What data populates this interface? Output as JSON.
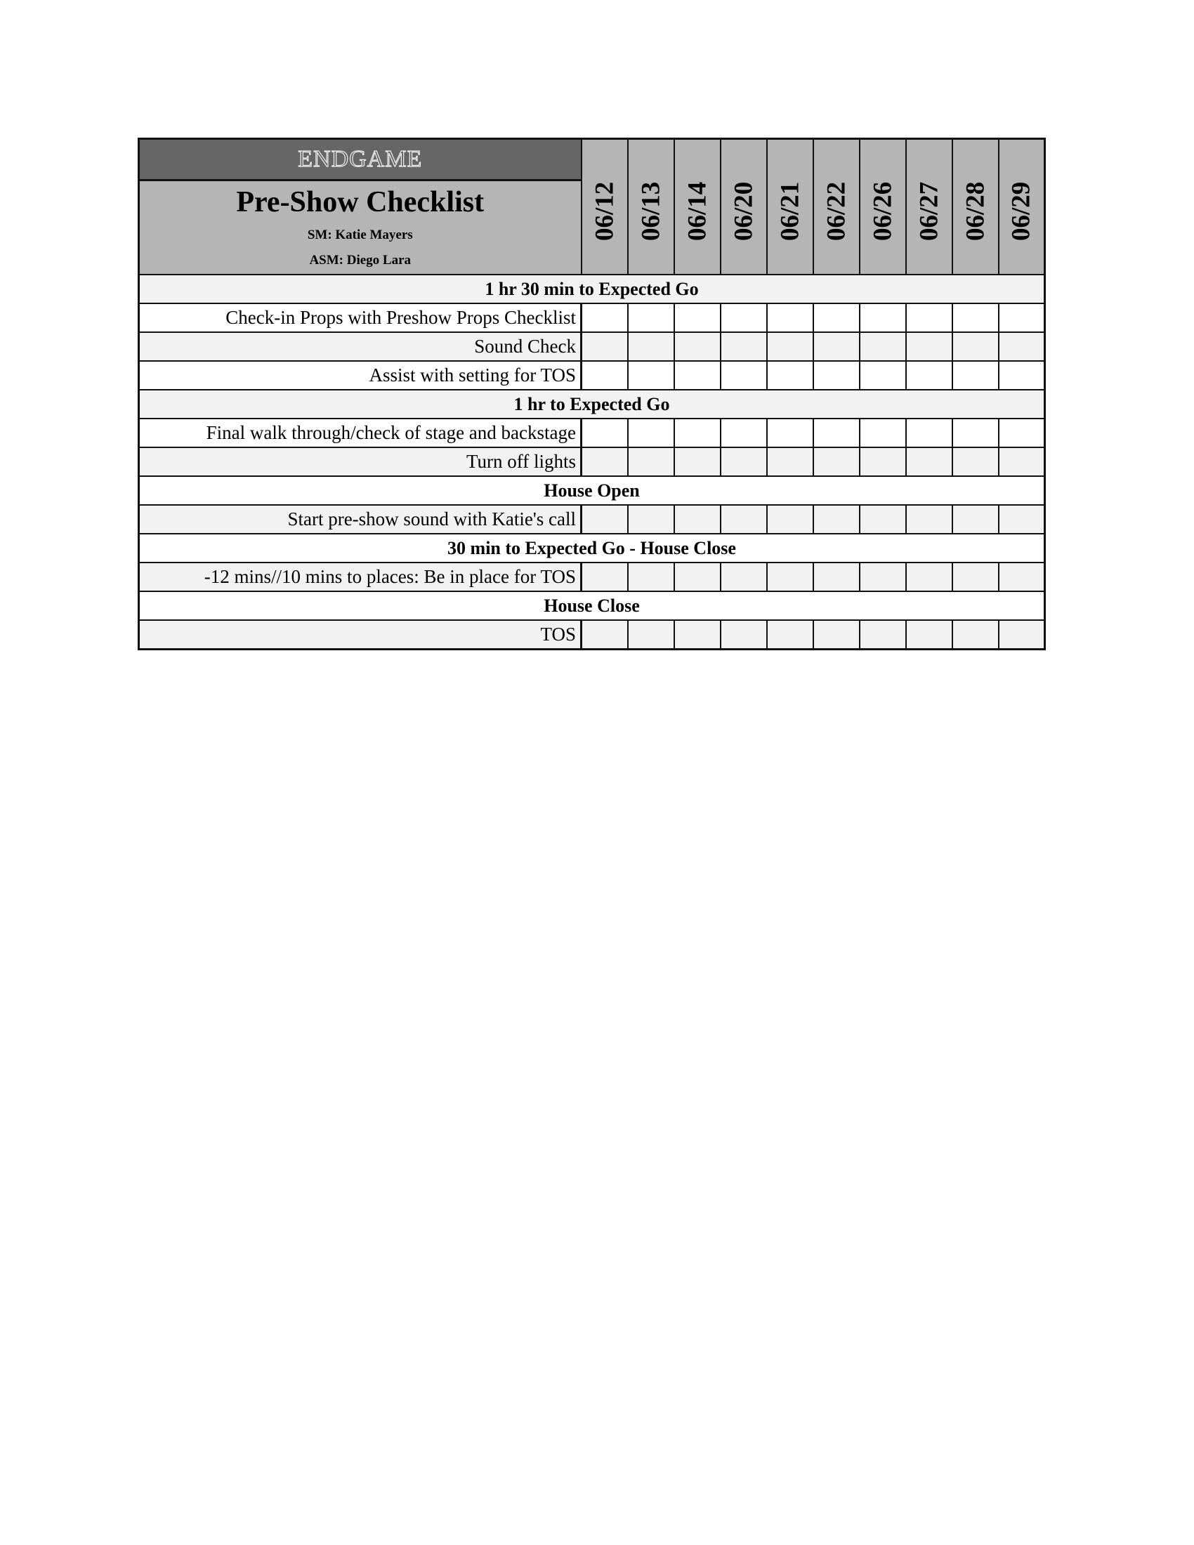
{
  "header": {
    "show_name": "ENDGAME",
    "title": "Pre-Show Checklist",
    "sm": "SM: Katie Mayers",
    "asm": "ASM: Diego Lara"
  },
  "dates": [
    "06/12",
    "06/13",
    "06/14",
    "06/20",
    "06/21",
    "06/22",
    "06/26",
    "06/27",
    "06/28",
    "06/29"
  ],
  "rows": [
    {
      "type": "section",
      "label": "1 hr 30 min to Expected Go",
      "shade": "gray"
    },
    {
      "type": "item",
      "label": "Check-in Props with Preshow Props Checklist",
      "shade": "white"
    },
    {
      "type": "item",
      "label": "Sound Check",
      "shade": "gray"
    },
    {
      "type": "item",
      "label": "Assist with setting for TOS",
      "shade": "white"
    },
    {
      "type": "section",
      "label": "1 hr to Expected Go",
      "shade": "gray"
    },
    {
      "type": "item",
      "label": "Final walk through/check of stage and backstage",
      "shade": "white"
    },
    {
      "type": "item",
      "label": "Turn off lights",
      "shade": "gray"
    },
    {
      "type": "section",
      "label": "House Open",
      "shade": "white"
    },
    {
      "type": "item",
      "label": "Start pre-show sound with Katie's call",
      "shade": "gray"
    },
    {
      "type": "section",
      "label": "30 min to Expected Go - House Close",
      "shade": "white"
    },
    {
      "type": "item",
      "label": "-12 mins//10 mins to places: Be in place for TOS",
      "shade": "gray"
    },
    {
      "type": "section",
      "label": "House Close",
      "shade": "white"
    },
    {
      "type": "item",
      "label": "TOS",
      "shade": "gray"
    }
  ],
  "colors": {
    "header_dark": "#666666",
    "header_gray": "#b5b5b5",
    "row_gray": "#f2f2f2",
    "border": "#111111"
  }
}
